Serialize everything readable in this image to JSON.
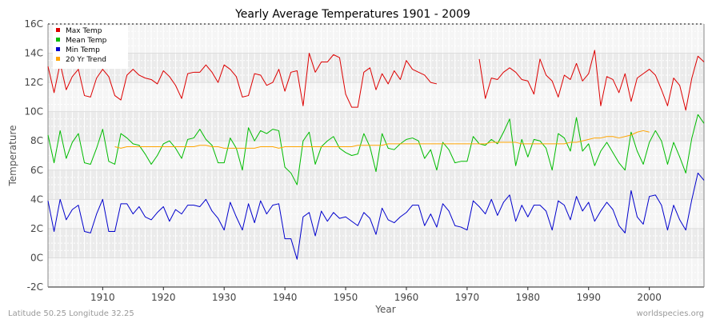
{
  "chart_data": {
    "type": "line",
    "title": "Yearly Average Temperatures 1901 - 2009",
    "xlabel": "Year",
    "ylabel": "Temperature",
    "xlim": [
      1901,
      2009
    ],
    "ylim": [
      -2,
      16
    ],
    "x_ticks": [
      1910,
      1920,
      1930,
      1940,
      1950,
      1960,
      1970,
      1980,
      1990,
      2000
    ],
    "y_ticks": [
      {
        "value": -2,
        "label": "-2C"
      },
      {
        "value": 0,
        "label": "0C"
      },
      {
        "value": 2,
        "label": "2C"
      },
      {
        "value": 4,
        "label": "4C"
      },
      {
        "value": 6,
        "label": "6C"
      },
      {
        "value": 8,
        "label": "8C"
      },
      {
        "value": 10,
        "label": "10C"
      },
      {
        "value": 12,
        "label": "12C"
      },
      {
        "value": 14,
        "label": "14C"
      },
      {
        "value": 16,
        "label": "16C"
      }
    ],
    "grid": true,
    "legend_position": "top-left",
    "start_year": 1901,
    "series": [
      {
        "name": "Max Temp",
        "color": "#dd0000",
        "values": [
          13.1,
          11.3,
          13.3,
          11.5,
          12.4,
          12.9,
          11.1,
          11.0,
          12.3,
          12.9,
          12.4,
          11.1,
          10.8,
          12.5,
          12.9,
          12.5,
          12.3,
          12.2,
          11.9,
          12.8,
          12.4,
          11.8,
          10.9,
          12.6,
          12.7,
          12.7,
          13.2,
          12.7,
          12.0,
          13.2,
          12.9,
          12.4,
          11.0,
          11.1,
          12.6,
          12.5,
          11.8,
          12.0,
          12.9,
          11.4,
          12.7,
          12.8,
          10.4,
          14.0,
          12.7,
          13.4,
          13.4,
          13.9,
          13.7,
          11.2,
          10.3,
          10.3,
          12.7,
          13.0,
          11.5,
          12.6,
          11.9,
          12.8,
          12.2,
          13.5,
          12.9,
          12.7,
          12.5,
          12.0,
          11.9,
          null,
          null,
          null,
          null,
          null,
          null,
          13.6,
          10.9,
          12.3,
          12.2,
          12.7,
          13.0,
          12.7,
          12.2,
          12.1,
          11.2,
          13.6,
          12.5,
          12.1,
          11.0,
          12.5,
          12.2,
          13.3,
          12.1,
          12.6,
          14.2,
          10.4,
          12.4,
          12.2,
          11.3,
          12.6,
          10.7,
          12.3,
          12.6,
          12.9,
          12.5,
          11.5,
          10.4,
          12.3,
          11.8,
          10.1,
          12.3,
          13.8,
          13.4,
          12.3,
          12.4,
          null,
          null,
          null,
          12.5,
          12.8,
          11.6,
          11.6,
          12.5,
          13.9,
          13.5,
          13.5,
          12.3,
          12.8,
          12.5,
          13.2,
          12.6,
          12.6,
          12.1,
          14.0,
          13.4,
          13.2
        ],
        "x_start": 1901
      },
      {
        "name": "Mean Temp",
        "color": "#00bb00",
        "values": [
          8.4,
          6.5,
          8.7,
          6.8,
          7.9,
          8.5,
          6.5,
          6.4,
          7.5,
          8.8,
          6.6,
          6.4,
          8.5,
          8.2,
          7.8,
          7.7,
          7.1,
          6.4,
          7.0,
          7.8,
          8.0,
          7.5,
          6.8,
          8.1,
          8.2,
          8.8,
          8.1,
          7.7,
          6.5,
          6.5,
          8.2,
          7.5,
          6.0,
          8.9,
          8.0,
          8.7,
          8.5,
          8.8,
          8.7,
          6.2,
          5.8,
          5.0,
          8.0,
          8.6,
          6.4,
          7.6,
          8.0,
          8.3,
          7.5,
          7.2,
          7.0,
          7.1,
          8.5,
          7.6,
          5.9,
          8.5,
          7.5,
          7.4,
          7.8,
          8.1,
          8.2,
          8.0,
          6.8,
          7.4,
          6.0,
          7.9,
          7.4,
          6.5,
          6.6,
          6.6,
          8.3,
          7.8,
          7.7,
          8.1,
          7.8,
          8.6,
          9.5,
          6.3,
          8.1,
          6.9,
          8.1,
          8.0,
          7.5,
          6.0,
          8.5,
          8.2,
          7.3,
          9.6,
          7.3,
          7.8,
          6.3,
          7.3,
          7.9,
          7.2,
          6.5,
          6.0,
          8.6,
          7.3,
          6.4,
          7.9,
          8.7,
          8.0,
          6.4,
          7.9,
          6.9,
          5.8,
          8.2,
          9.8,
          9.2,
          8.4,
          8.2,
          8.0,
          7.5,
          7.9,
          8.3,
          8.6,
          7.4,
          8.5,
          8.9,
          9.4,
          8.9,
          8.6,
          8.0,
          8.6,
          8.8,
          7.9,
          9.8,
          9.5,
          9.2
        ],
        "x_start": 1901
      },
      {
        "name": "Min Temp",
        "color": "#0000cc",
        "values": [
          3.9,
          1.8,
          4.0,
          2.6,
          3.3,
          3.6,
          1.8,
          1.7,
          3.0,
          4.0,
          1.8,
          1.8,
          3.7,
          3.7,
          3.0,
          3.5,
          2.8,
          2.6,
          3.1,
          3.5,
          2.5,
          3.3,
          3.0,
          3.6,
          3.6,
          3.5,
          4.0,
          3.2,
          2.7,
          1.9,
          3.8,
          2.8,
          1.9,
          3.7,
          2.4,
          3.9,
          3.0,
          3.6,
          3.7,
          1.3,
          1.3,
          -0.1,
          2.8,
          3.1,
          1.5,
          3.2,
          2.5,
          3.1,
          2.7,
          2.8,
          2.5,
          2.2,
          3.1,
          2.7,
          1.6,
          3.4,
          2.6,
          2.4,
          2.8,
          3.1,
          3.6,
          3.6,
          2.2,
          3.0,
          2.1,
          3.7,
          3.2,
          2.2,
          2.1,
          1.9,
          3.9,
          3.5,
          3.0,
          4.0,
          2.9,
          3.8,
          4.3,
          2.5,
          3.6,
          2.8,
          3.6,
          3.6,
          3.2,
          1.9,
          3.9,
          3.6,
          2.6,
          4.2,
          3.2,
          3.8,
          2.5,
          3.2,
          3.8,
          3.3,
          2.2,
          1.7,
          4.6,
          2.8,
          2.3,
          4.2,
          4.3,
          3.6,
          1.9,
          3.6,
          2.6,
          1.9,
          4.0,
          5.8,
          5.3,
          4.6,
          4.3,
          3.9,
          3.6,
          4.0,
          4.3,
          4.6,
          3.4,
          4.6,
          5.0,
          5.5,
          5.0,
          4.5,
          4.0,
          4.6,
          4.6,
          3.7,
          5.6,
          5.4,
          5.1
        ],
        "x_start": 1901
      },
      {
        "name": "20 Yr Trend",
        "color": "#ffa500",
        "values": [
          7.6,
          7.5,
          7.6,
          7.6,
          7.6,
          7.6,
          7.6,
          7.6,
          7.6,
          7.6,
          7.6,
          7.6,
          7.6,
          7.6,
          7.7,
          7.7,
          7.6,
          7.6,
          7.5,
          7.5,
          7.5,
          7.5,
          7.5,
          7.5,
          7.6,
          7.6,
          7.6,
          7.5,
          7.6,
          7.6,
          7.6,
          7.6,
          7.6,
          7.6,
          7.6,
          7.6,
          7.6,
          7.6,
          7.6,
          7.6,
          7.7,
          7.7,
          7.7,
          7.7,
          7.7,
          7.8,
          7.8,
          7.8,
          7.8,
          7.8,
          7.8,
          7.8,
          7.8,
          7.8,
          7.8,
          7.8,
          7.8,
          7.8,
          7.8,
          7.8,
          7.8,
          7.8,
          7.9,
          7.9,
          7.9,
          7.9,
          7.9,
          7.8,
          7.8,
          7.8,
          7.8,
          7.8,
          7.8,
          7.8,
          7.8,
          7.9,
          7.9,
          8.0,
          8.1,
          8.2,
          8.2,
          8.3,
          8.3,
          8.2,
          8.3,
          8.4,
          8.6,
          8.7,
          8.6
        ],
        "x_start": 1912,
        "x_step": 1
      }
    ]
  },
  "footer": {
    "left": "Latitude 50.25 Longitude 32.25",
    "right": "worldspecies.org"
  }
}
